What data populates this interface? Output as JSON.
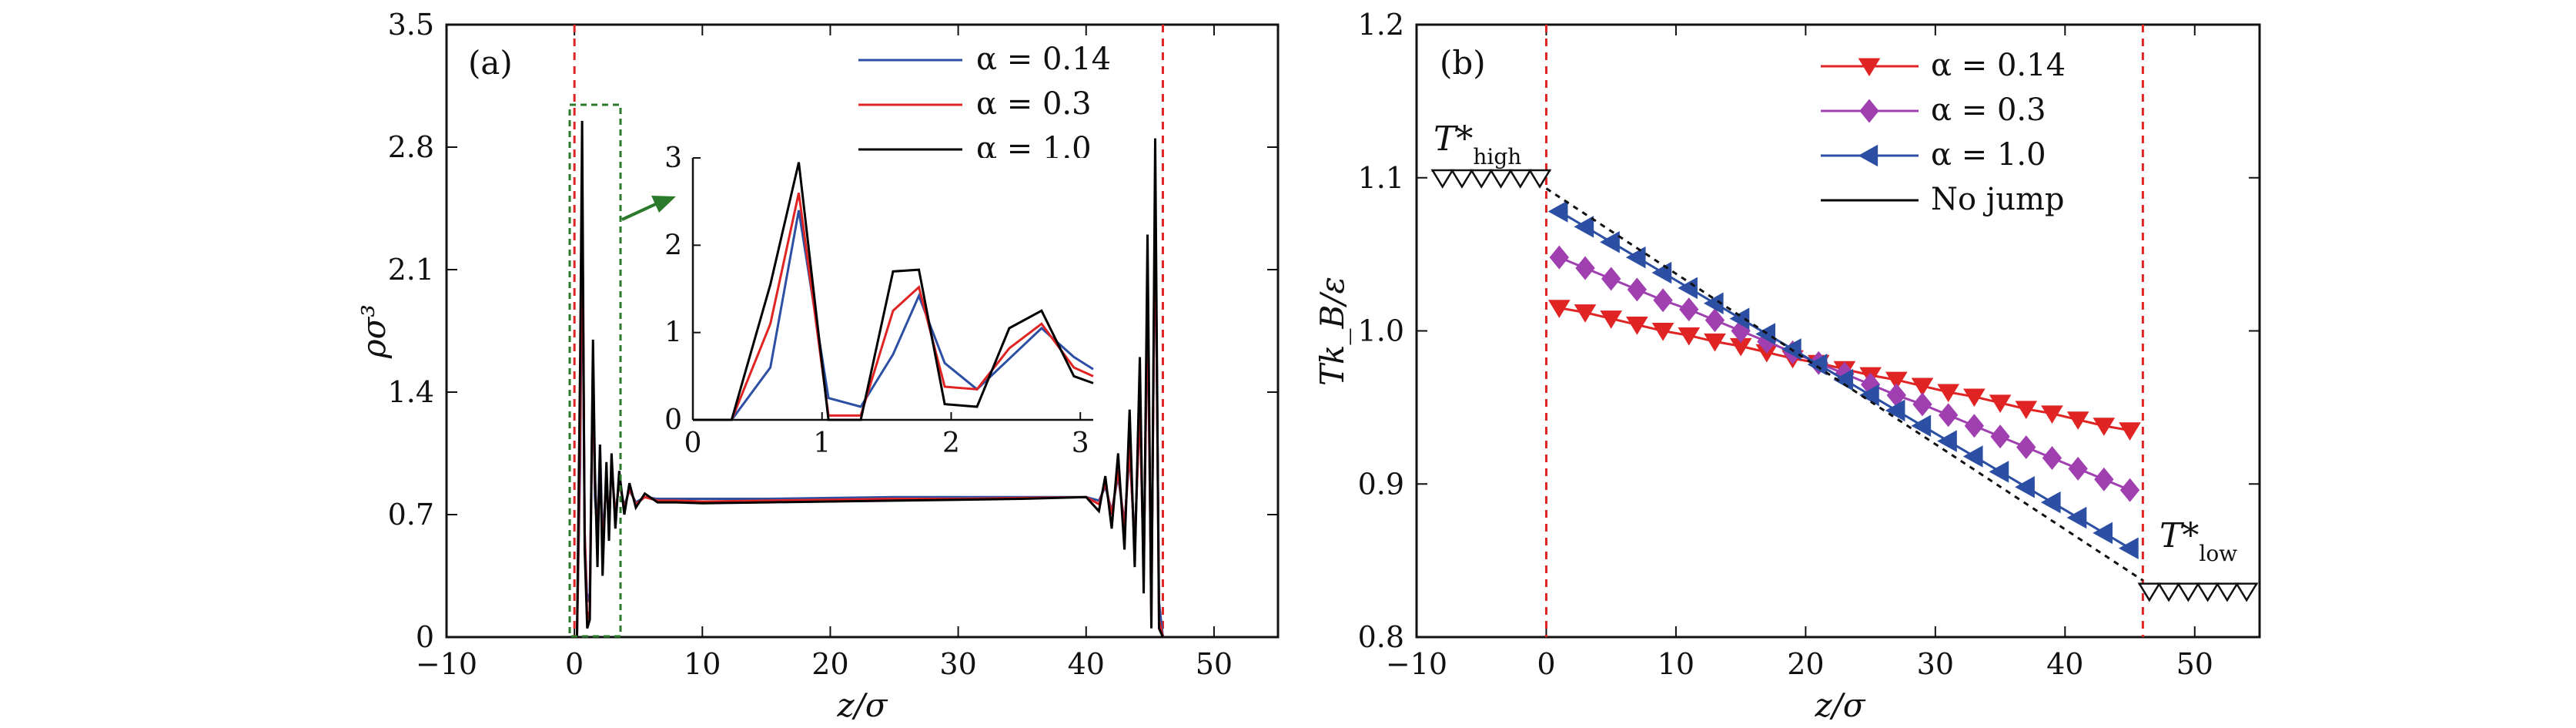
{
  "chart_data": [
    {
      "panel": "(a)",
      "type": "line",
      "xlabel": "z/σ",
      "ylabel": "ρσ³",
      "xlim": [
        -10,
        55
      ],
      "ylim": [
        0,
        3.5
      ],
      "xticks": [
        -10,
        0,
        10,
        20,
        30,
        40,
        50
      ],
      "yticks": [
        0,
        0.7,
        1.4,
        2.1,
        2.8,
        3.5
      ],
      "xtick_labels": [
        "−10",
        "0",
        "10",
        "20",
        "30",
        "40",
        "50"
      ],
      "ytick_labels": [
        "0",
        "0.7",
        "1.4",
        "2.1",
        "2.8",
        "3.5"
      ],
      "vlines": [
        0,
        46
      ],
      "legend": [
        "α = 0.14",
        "α = 0.3",
        "α = 1.0"
      ],
      "series": [
        {
          "name": "α = 0.14",
          "color": "#2c4fa3",
          "x": [
            -0.2,
            0.2,
            0.45,
            0.6,
            0.8,
            1.0,
            1.2,
            1.45,
            1.6,
            1.8,
            2.0,
            2.2,
            2.5,
            2.7,
            2.9,
            3.2,
            3.5,
            3.9,
            4.3,
            4.8,
            5.5,
            6.5,
            8,
            10,
            15,
            20,
            25,
            30,
            35,
            40,
            41,
            41.5,
            42,
            42.5,
            43,
            43.4,
            43.8,
            44.2,
            44.5,
            44.8,
            45.1,
            45.4,
            45.7,
            46
          ],
          "y": [
            0,
            0,
            1.0,
            2.4,
            0.6,
            0.2,
            0.25,
            1.55,
            0.8,
            0.6,
            1.1,
            0.55,
            0.9,
            0.65,
            0.98,
            0.7,
            0.88,
            0.75,
            0.84,
            0.77,
            0.8,
            0.79,
            0.79,
            0.79,
            0.79,
            0.795,
            0.8,
            0.8,
            0.8,
            0.8,
            0.78,
            0.86,
            0.72,
            0.92,
            0.65,
            1.05,
            0.55,
            1.3,
            0.4,
            1.9,
            0.2,
            2.5,
            0.2,
            0
          ]
        },
        {
          "name": "α = 0.3",
          "color": "#e02424",
          "x": [
            -0.2,
            0.2,
            0.45,
            0.6,
            0.8,
            1.0,
            1.2,
            1.45,
            1.6,
            1.8,
            2.0,
            2.2,
            2.5,
            2.7,
            2.9,
            3.2,
            3.5,
            3.9,
            4.3,
            4.8,
            5.5,
            6.5,
            8,
            10,
            15,
            20,
            25,
            30,
            35,
            40,
            41,
            41.5,
            42,
            42.5,
            43,
            43.4,
            43.8,
            44.2,
            44.5,
            44.8,
            45.1,
            45.4,
            45.7,
            46
          ],
          "y": [
            0,
            0,
            1.2,
            2.6,
            0.6,
            0.1,
            0.15,
            1.6,
            0.9,
            0.5,
            1.05,
            0.45,
            0.95,
            0.6,
            1.0,
            0.68,
            0.9,
            0.73,
            0.85,
            0.76,
            0.8,
            0.78,
            0.78,
            0.775,
            0.78,
            0.785,
            0.79,
            0.79,
            0.795,
            0.8,
            0.76,
            0.88,
            0.7,
            0.95,
            0.62,
            1.1,
            0.5,
            1.35,
            0.35,
            2.0,
            0.1,
            2.6,
            0.1,
            0
          ]
        },
        {
          "name": "α = 1.0",
          "color": "#000000",
          "x": [
            -0.2,
            0.2,
            0.45,
            0.6,
            0.8,
            1.0,
            1.2,
            1.45,
            1.6,
            1.8,
            2.0,
            2.2,
            2.5,
            2.7,
            2.9,
            3.2,
            3.5,
            3.9,
            4.3,
            4.8,
            5.5,
            6.5,
            8,
            10,
            15,
            20,
            25,
            30,
            35,
            40,
            41,
            41.5,
            42,
            42.5,
            43,
            43.4,
            43.8,
            44.2,
            44.5,
            44.8,
            45.1,
            45.4,
            45.7,
            46
          ],
          "y": [
            0,
            0,
            1.6,
            2.95,
            0.5,
            0.05,
            0.1,
            1.7,
            0.95,
            0.4,
            1.1,
            0.35,
            1.0,
            0.55,
            1.05,
            0.62,
            0.95,
            0.7,
            0.88,
            0.74,
            0.82,
            0.77,
            0.77,
            0.765,
            0.77,
            0.775,
            0.78,
            0.785,
            0.79,
            0.8,
            0.72,
            0.92,
            0.62,
            1.05,
            0.5,
            1.3,
            0.4,
            1.6,
            0.25,
            2.3,
            0.05,
            2.85,
            0.05,
            0
          ]
        }
      ],
      "inset": {
        "xlim": [
          0,
          3.1
        ],
        "ylim": [
          0,
          3
        ],
        "xticks": [
          0,
          1,
          2,
          3
        ],
        "yticks": [
          0,
          1,
          2,
          3
        ],
        "xtick_labels": [
          "0",
          "1",
          "2",
          "3"
        ],
        "ytick_labels": [
          "0",
          "1",
          "2",
          "3"
        ],
        "series": [
          {
            "name": "α = 0.14",
            "color": "#2c4fa3",
            "x": [
              0,
              0.3,
              0.6,
              0.82,
              1.05,
              1.3,
              1.55,
              1.75,
              1.95,
              2.2,
              2.45,
              2.7,
              2.95,
              3.1
            ],
            "y": [
              0,
              0,
              0.6,
              2.4,
              0.25,
              0.15,
              0.75,
              1.42,
              0.65,
              0.35,
              0.7,
              1.05,
              0.72,
              0.58
            ]
          },
          {
            "name": "α = 0.3",
            "color": "#e02424",
            "x": [
              0,
              0.3,
              0.6,
              0.82,
              1.05,
              1.3,
              1.55,
              1.75,
              1.95,
              2.2,
              2.45,
              2.7,
              2.95,
              3.1
            ],
            "y": [
              0,
              0,
              1.1,
              2.6,
              0.05,
              0.05,
              1.25,
              1.52,
              0.38,
              0.35,
              0.82,
              1.1,
              0.6,
              0.5
            ]
          },
          {
            "name": "α = 1.0",
            "color": "#000000",
            "x": [
              0,
              0.3,
              0.6,
              0.82,
              1.05,
              1.3,
              1.55,
              1.75,
              1.95,
              2.2,
              2.45,
              2.7,
              2.95,
              3.1
            ],
            "y": [
              0,
              0,
              1.55,
              2.95,
              0.0,
              0.0,
              1.7,
              1.72,
              0.18,
              0.15,
              1.05,
              1.25,
              0.5,
              0.42
            ]
          }
        ]
      }
    },
    {
      "panel": "(b)",
      "type": "line",
      "xlabel": "z/σ",
      "ylabel": "Tk_B/ε",
      "xlim": [
        -10,
        55
      ],
      "ylim": [
        0.8,
        1.2
      ],
      "xticks": [
        -10,
        0,
        10,
        20,
        30,
        40,
        50
      ],
      "yticks": [
        0.8,
        0.9,
        1.0,
        1.1,
        1.2
      ],
      "xtick_labels": [
        "−10",
        "0",
        "10",
        "20",
        "30",
        "40",
        "50"
      ],
      "ytick_labels": [
        "0.8",
        "0.9",
        "1.0",
        "1.1",
        "1.2"
      ],
      "vlines": [
        0,
        46
      ],
      "legend": [
        "α = 0.14",
        "α = 0.3",
        "α = 1.0",
        "No jump"
      ],
      "annotations": {
        "t_high": "T*",
        "t_high_sub": "high",
        "t_low": "T*",
        "t_low_sub": "low"
      },
      "reservoirs": {
        "hot": {
          "x": [
            -8,
            -6.5,
            -5,
            -3.5,
            -2,
            -0.5
          ],
          "value": 1.1
        },
        "cold": {
          "x": [
            46.5,
            48,
            49.5,
            51,
            52.5,
            54
          ],
          "value": 0.83
        }
      },
      "series": [
        {
          "name": "α = 0.14",
          "color": "#e02424",
          "marker": "triangle-down",
          "x": [
            1,
            3,
            5,
            7,
            9,
            11,
            13,
            15,
            17,
            19,
            21,
            23,
            25,
            27,
            29,
            31,
            33,
            35,
            37,
            39,
            41,
            43,
            45
          ],
          "y": [
            1.015,
            1.012,
            1.008,
            1.004,
            1.0,
            0.997,
            0.993,
            0.99,
            0.986,
            0.982,
            0.979,
            0.975,
            0.971,
            0.968,
            0.964,
            0.96,
            0.957,
            0.953,
            0.949,
            0.946,
            0.942,
            0.938,
            0.935
          ]
        },
        {
          "name": "α = 0.3",
          "color": "#a040b0",
          "marker": "diamond",
          "x": [
            1,
            3,
            5,
            7,
            9,
            11,
            13,
            15,
            17,
            19,
            21,
            23,
            25,
            27,
            29,
            31,
            33,
            35,
            37,
            39,
            41,
            43,
            45
          ],
          "y": [
            1.048,
            1.041,
            1.034,
            1.027,
            1.02,
            1.014,
            1.007,
            1.0,
            0.993,
            0.986,
            0.979,
            0.972,
            0.965,
            0.958,
            0.952,
            0.945,
            0.938,
            0.931,
            0.924,
            0.917,
            0.91,
            0.903,
            0.896
          ]
        },
        {
          "name": "α = 1.0",
          "color": "#2c4fa3",
          "marker": "triangle-left",
          "x": [
            1,
            3,
            5,
            7,
            9,
            11,
            13,
            15,
            17,
            19,
            21,
            23,
            25,
            27,
            29,
            31,
            33,
            35,
            37,
            39,
            41,
            43,
            45
          ],
          "y": [
            1.078,
            1.068,
            1.058,
            1.048,
            1.038,
            1.028,
            1.018,
            1.008,
            0.998,
            0.988,
            0.978,
            0.968,
            0.958,
            0.948,
            0.938,
            0.928,
            0.918,
            0.908,
            0.898,
            0.888,
            0.878,
            0.868,
            0.858
          ]
        },
        {
          "name": "No jump",
          "color": "#000000",
          "dash": true,
          "x": [
            0,
            46
          ],
          "y": [
            1.093,
            0.837
          ]
        }
      ]
    }
  ]
}
